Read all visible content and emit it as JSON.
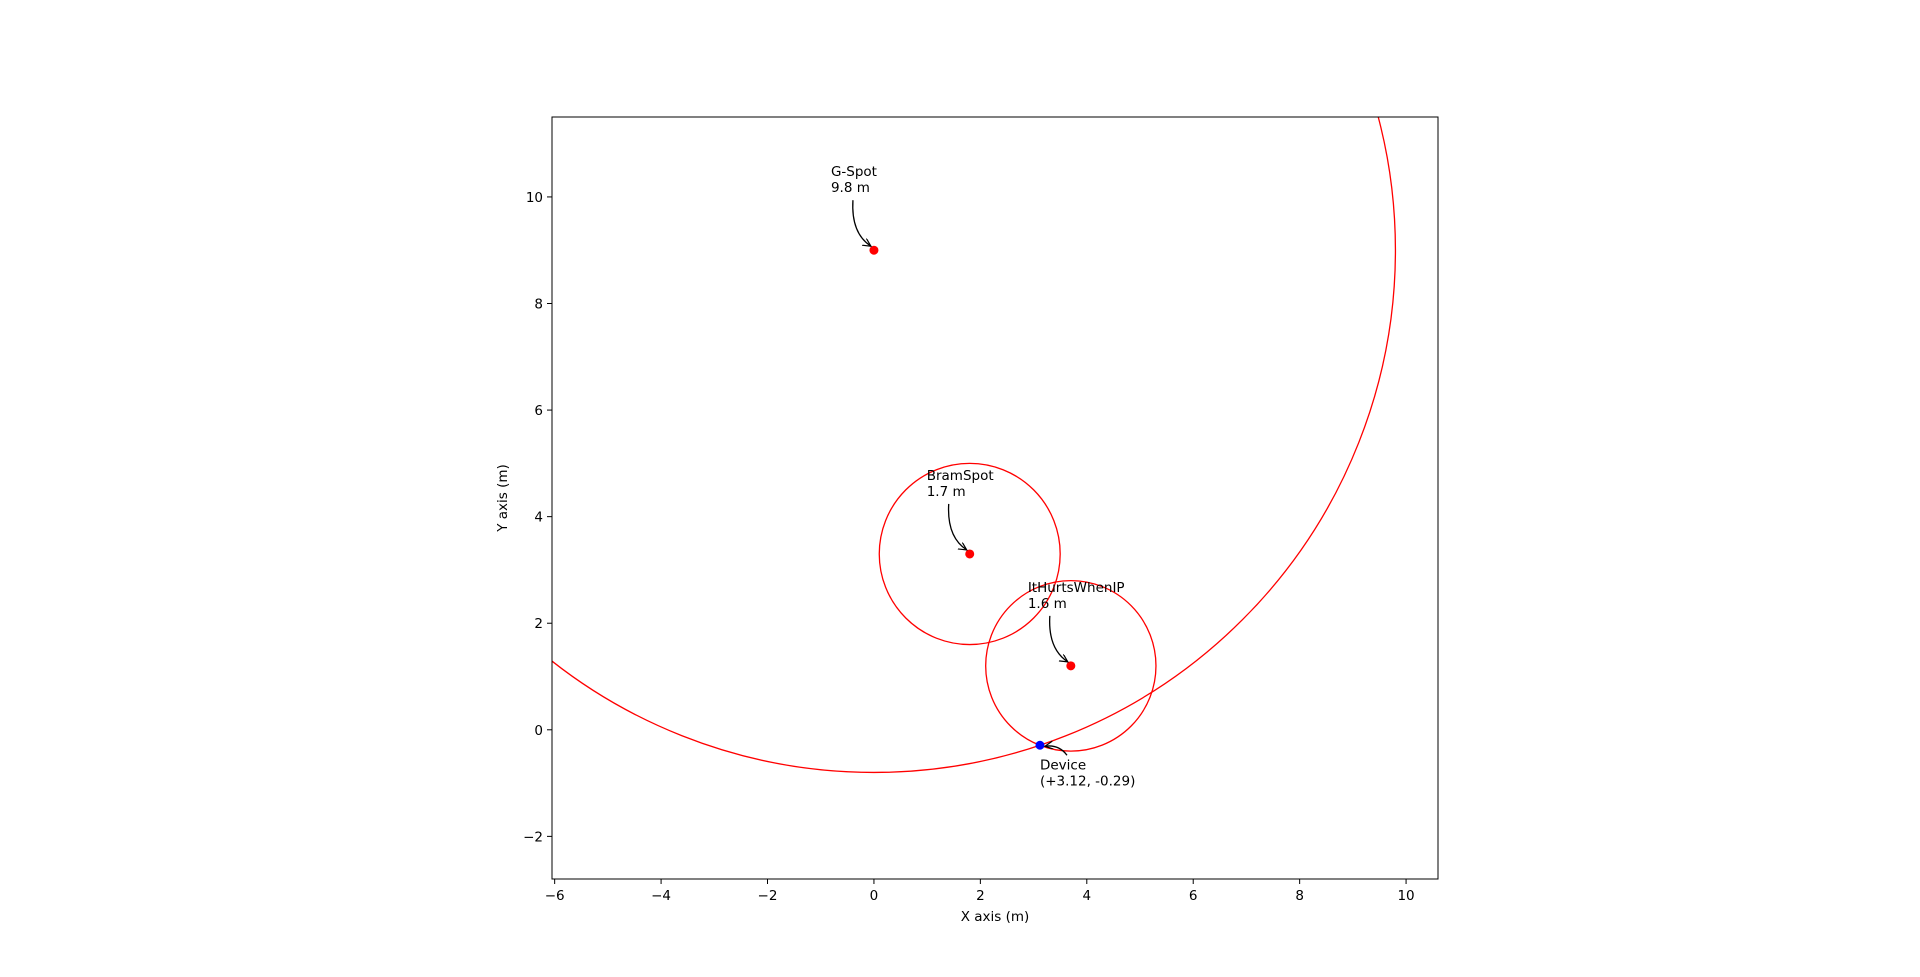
{
  "chart_data": {
    "type": "scatter",
    "title": "",
    "xlabel": "X axis (m)",
    "ylabel": "Y axis (m)",
    "xlim": [
      -6.05,
      10.6
    ],
    "ylim": [
      -2.8,
      11.5
    ],
    "xticks": [
      -6,
      -4,
      -2,
      0,
      2,
      4,
      6,
      8,
      10
    ],
    "yticks": [
      -2,
      0,
      2,
      4,
      6,
      8,
      10
    ],
    "xtick_labels": [
      "−6",
      "−4",
      "−2",
      "0",
      "2",
      "4",
      "6",
      "8",
      "10"
    ],
    "ytick_labels": [
      "−2",
      "0",
      "2",
      "4",
      "6",
      "8",
      "10"
    ],
    "grid": false,
    "colors": {
      "anchor": "#ff0000",
      "device": "#0000ff",
      "circle": "#ff0000",
      "frame": "#000000"
    },
    "anchors": [
      {
        "name": "G-Spot",
        "distance_label": "9.8 m",
        "x": 0.0,
        "y": 9.0,
        "radius": 9.8
      },
      {
        "name": "BramSpot",
        "distance_label": "1.7 m",
        "x": 1.8,
        "y": 3.3,
        "radius": 1.7
      },
      {
        "name": "ItHurtsWhenIP",
        "distance_label": "1.6 m",
        "x": 3.7,
        "y": 1.2,
        "radius": 1.6
      }
    ],
    "device": {
      "name": "Device",
      "coords_label": "(+3.12, -0.29)",
      "x": 3.12,
      "y": -0.29
    }
  }
}
